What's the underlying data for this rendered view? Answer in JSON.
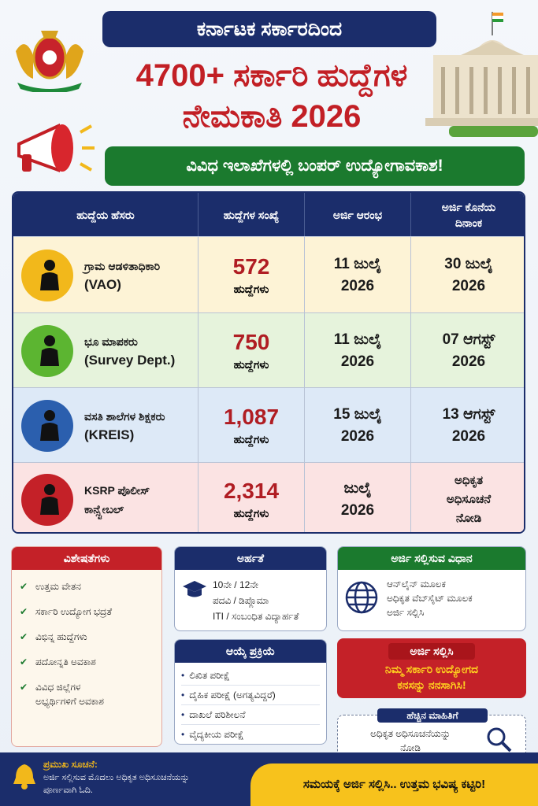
{
  "header": {
    "tag": "ಕರ್ನಾಟಕ ಸರ್ಕಾರದಿಂದ",
    "title_lines": [
      "4700+ ಸರ್ಕಾರಿ ಹುದ್ದೆಗಳ",
      "ನೇಮಕಾತಿ 2026"
    ],
    "banner": "ವಿವಿಧ ಇಲಾಖೆಗಳಲ್ಲಿ ಬಂಪರ್ ಉದ್ಯೋಗಾವಕಾಶ!"
  },
  "table": {
    "columns": [
      [
        "ಹುದ್ದೆಯ ಹೆಸರು"
      ],
      [
        "ಹುದ್ದೆಗಳ ಸಂಖ್ಯೆ"
      ],
      [
        "ಅರ್ಜಿ ಆರಂಭ"
      ],
      [
        "ಅರ್ಜಿ ಕೊನೆಯ",
        "ದಿನಾಂಕ"
      ]
    ],
    "rows": [
      {
        "post": [
          "ಗ್ರಾಮ ಆಡಳಿತಾಧಿಕಾರಿ",
          "(VAO)"
        ],
        "count": "572",
        "unit": "ಹುದ್ದೆಗಳು",
        "start": [
          "11 ಜುಲೈ",
          "2026"
        ],
        "end": [
          "30 ಜುಲೈ",
          "2026"
        ]
      },
      {
        "post": [
          "ಭೂ ಮಾಪಕರು",
          "(Survey Dept.)"
        ],
        "count": "750",
        "unit": "ಹುದ್ದೆಗಳು",
        "start": [
          "11 ಜುಲೈ",
          "2026"
        ],
        "end": [
          "07 ಆಗಸ್ಟ್",
          "2026"
        ]
      },
      {
        "post": [
          "ವಸತಿ ಶಾಲೆಗಳ ಶಿಕ್ಷಕರು",
          "(KREIS)"
        ],
        "count": "1,087",
        "unit": "ಹುದ್ದೆಗಳು",
        "start": [
          "15 ಜುಲೈ",
          "2026"
        ],
        "end": [
          "13 ಆಗಸ್ಟ್",
          "2026"
        ]
      },
      {
        "post": [
          "KSRP ಪೊಲೀಸ್",
          "ಕಾನ್ಸ್ಟೇಬಲ್"
        ],
        "count": "2,314",
        "unit": "ಹುದ್ದೆಗಳು",
        "start": [
          "ಜುಲೈ",
          "2026"
        ],
        "end": [
          "ಅಧಿಕೃತ",
          "ಅಧಿಸೂಚನೆ",
          "ನೋಡಿ"
        ]
      }
    ]
  },
  "features": {
    "title": "ವಿಶೇಷತೆಗಳು",
    "items": [
      [
        "ಉತ್ತಮ ವೇತನ"
      ],
      [
        "ಸರ್ಕಾರಿ ಉದ್ಯೋಗ ಭದ್ರತೆ"
      ],
      [
        "ವಿಭಿನ್ನ ಹುದ್ದೆಗಳು"
      ],
      [
        "ಪದೋನ್ನತಿ ಅವಕಾಶ"
      ],
      [
        "ವಿವಿಧ ಜಿಲ್ಲೆಗಳ",
        "ಅಭ್ಯರ್ಥಿಗಳಿಗೆ ಅವಕಾಶ"
      ]
    ]
  },
  "eligibility": {
    "title": "ಅರ್ಹತೆ",
    "items": [
      "10ನೇ / 12ನೇ",
      "ಪದವಿ / ಡಿಪ್ಲೊಮಾ",
      "ITI / ಸಂಬಂಧಿತ ವಿದ್ಯಾರ್ಹತೆ"
    ]
  },
  "apply_method": {
    "title": "ಅರ್ಜಿ ಸಲ್ಲಿಸುವ ವಿಧಾನ",
    "items": [
      "ಆನ್‌ಲೈನ್ ಮೂಲಕ",
      "ಅಧಿಕೃತ ವೆಬ್‌ಸೈಟ್ ಮೂಲಕ",
      "ಅರ್ಜಿ ಸಲ್ಲಿಸಿ"
    ]
  },
  "selection": {
    "title": "ಆಯ್ಕೆ ಪ್ರಕ್ರಿಯೆ",
    "items": [
      "ಲಿಖಿತ ಪರೀಕ್ಷೆ",
      "ದೈಹಿಕ ಪರೀಕ್ಷೆ (ಅಗತ್ಯವಿದ್ದರೆ)",
      "ದಾಖಲೆ ಪರಿಶೀಲನೆ",
      "ವೈದ್ಯಕೀಯ ಪರೀಕ್ಷೆ"
    ]
  },
  "cta": {
    "title": "ಅರ್ಜಿ ಸಲ್ಲಿಸಿ",
    "lines": [
      "ನಿಮ್ಮ ಸರ್ಕಾರಿ ಉದ್ಯೋಗದ",
      "ಕನಸನ್ನು ನನಸಾಗಿಸಿ!"
    ]
  },
  "more_info": {
    "title": "ಹೆಚ್ಚಿನ ಮಾಹಿತಿಗೆ",
    "lines": [
      "ಅಧಿಕೃತ ಅಧಿಸೂಚನೆಯನ್ನು",
      "ನೋಡಿ"
    ]
  },
  "footer": {
    "notice_title": "ಪ್ರಮುಖ ಸೂಚನೆ:",
    "notice_lines": [
      "ಅರ್ಜಿ ಸಲ್ಲಿಸುವ ಮೊದಲು ಅಧಿಕೃತ ಅಧಿಸೂಚನೆಯನ್ನು",
      "ಪೂರ್ಣವಾಗಿ ಓದಿ."
    ],
    "slogan": "ಸಮಯಕ್ಕೆ ಅರ್ಜಿ ಸಲ್ಲಿಸಿ.. ಉತ್ತಮ ಭವಿಷ್ಯ ಕಟ್ಟಿರಿ!"
  }
}
